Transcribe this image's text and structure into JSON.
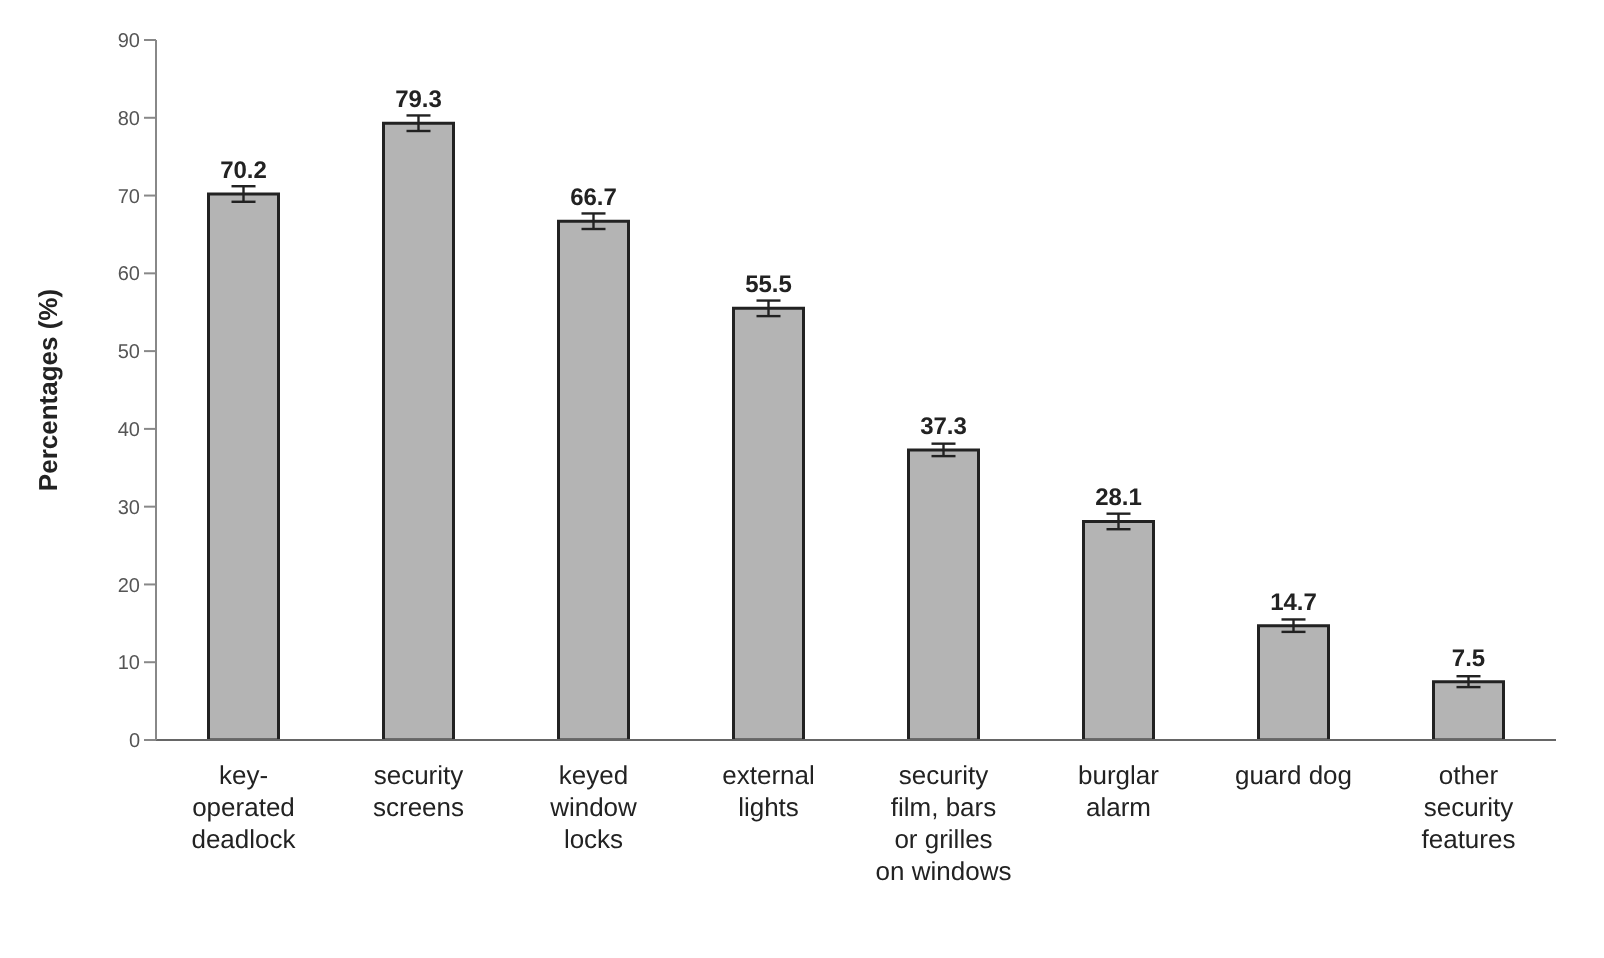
{
  "chart_data": {
    "type": "bar",
    "ylabel": "Percentages (%)",
    "categories": [
      "key-operated deadlock",
      "security screens",
      "keyed window locks",
      "external lights",
      "security film, bars or grilles on windows",
      "burglar alarm",
      "guard dog",
      "other security features"
    ],
    "values": [
      70.2,
      79.3,
      66.7,
      55.5,
      37.3,
      28.1,
      14.7,
      7.5
    ],
    "errors": [
      1,
      1,
      1,
      1,
      0.8,
      1,
      0.8,
      0.7
    ],
    "color": "#b4b4b4",
    "ylim": [
      0,
      90
    ],
    "yticks": [
      0,
      10,
      20,
      30,
      40,
      50,
      60,
      70,
      80,
      90
    ],
    "grid": false,
    "data_labels": true
  }
}
